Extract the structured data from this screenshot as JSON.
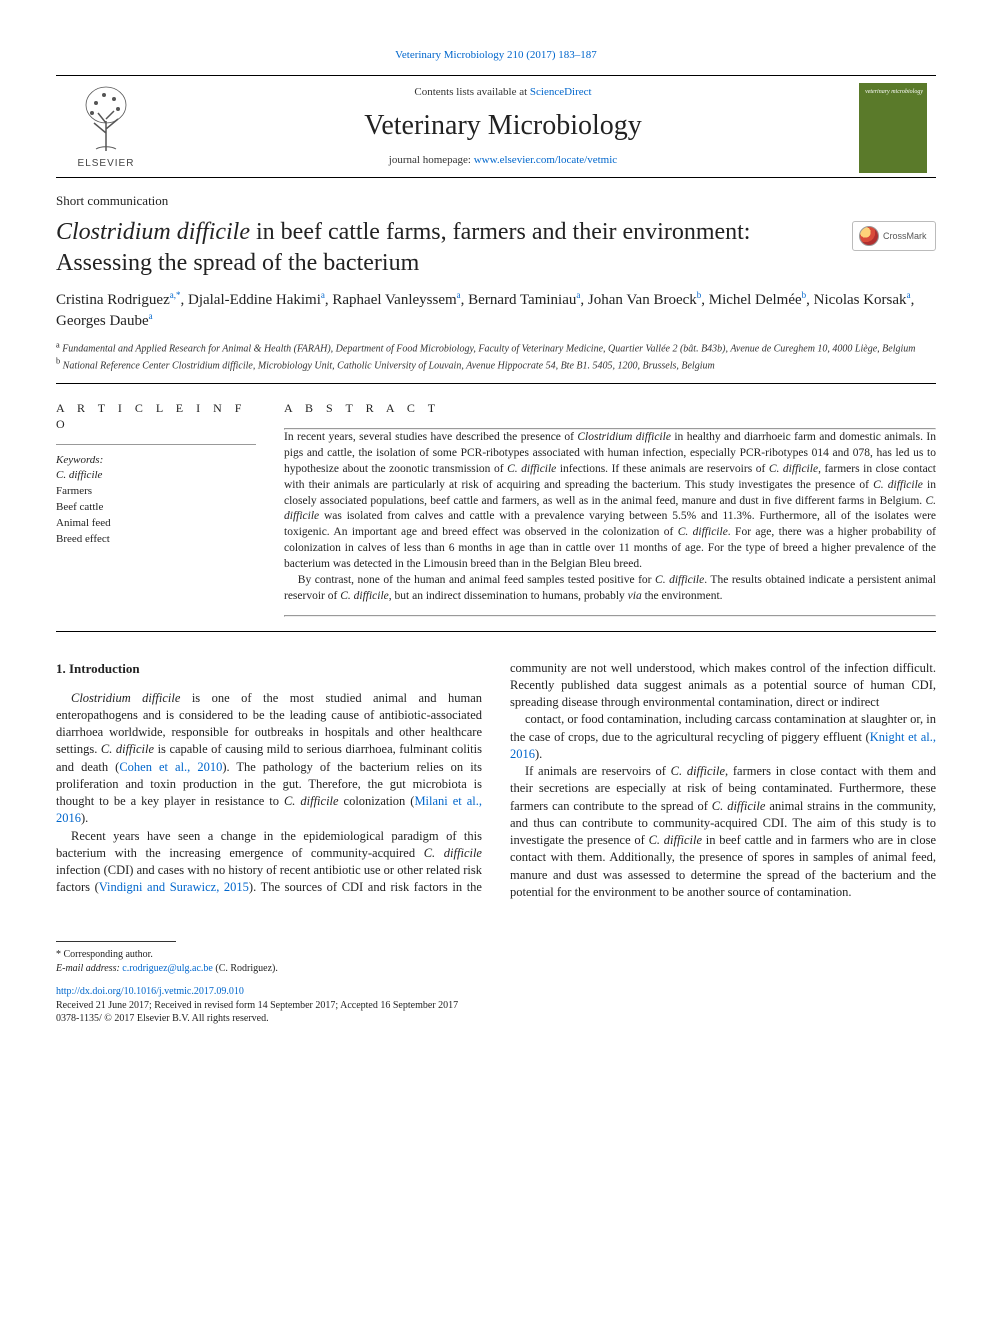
{
  "top_link": "Veterinary Microbiology 210 (2017) 183–187",
  "header": {
    "contents_prefix": "Contents lists available at ",
    "contents_link": "ScienceDirect",
    "journal_name": "Veterinary Microbiology",
    "homepage_prefix": "journal homepage: ",
    "homepage_link": "www.elsevier.com/locate/vetmic",
    "elsevier": "ELSEVIER",
    "cover_text": "veterinary microbiology",
    "crossmark": "CrossMark"
  },
  "section_label": "Short communication",
  "title_prefix_italic": "Clostridium difficile",
  "title_rest": " in beef cattle farms, farmers and their environment: Assessing the spread of the bacterium",
  "authors_line": "Cristina Rodriguez|a,*|, Djalal-Eddine Hakimi|a|, Raphael Vanleyssem|a|, Bernard Taminiau|a|, Johan Van Broeck|b|, Michel Delmée|b|, Nicolas Korsak|a|, Georges Daube|a|",
  "affils": [
    {
      "sup": "a",
      "text": " Fundamental and Applied Research for Animal & Health (FARAH), Department of Food Microbiology, Faculty of Veterinary Medicine, Quartier Vallée 2 (bât. B43b), Avenue de Cureghem 10, 4000 Liège, Belgium"
    },
    {
      "sup": "b",
      "text": " National Reference Center Clostridium difficile, Microbiology Unit, Catholic University of Louvain, Avenue Hippocrate 54, Bte B1. 5405, 1200, Brussels, Belgium"
    }
  ],
  "info": {
    "heading": "A R T I C L E  I N F O",
    "kw_label": "Keywords:",
    "keywords": [
      "C. difficile",
      "Farmers",
      "Beef cattle",
      "Animal feed",
      "Breed effect"
    ]
  },
  "abstract": {
    "heading": "A B S T R A C T",
    "p1": "In recent years, several studies have described the presence of Clostridium difficile in healthy and diarrhoeic farm and domestic animals. In pigs and cattle, the isolation of some PCR-ribotypes associated with human infection, especially PCR-ribotypes 014 and 078, has led us to hypothesize about the zoonotic transmission of C. difficile infections. If these animals are reservoirs of C. difficile, farmers in close contact with their animals are particularly at risk of acquiring and spreading the bacterium. This study investigates the presence of C. difficile in closely associated populations, beef cattle and farmers, as well as in the animal feed, manure and dust in five different farms in Belgium. C. difficile was isolated from calves and cattle with a prevalence varying between 5.5% and 11.3%. Furthermore, all of the isolates were toxigenic. An important age and breed effect was observed in the colonization of C. difficile. For age, there was a higher probability of colonization in calves of less than 6 months in age than in cattle over 11 months of age. For the type of breed a higher prevalence of the bacterium was detected in the Limousin breed than in the Belgian Bleu breed.",
    "p2": "By contrast, none of the human and animal feed samples tested positive for C. difficile. The results obtained indicate a persistent animal reservoir of C. difficile, but an indirect dissemination to humans, probably via the environment."
  },
  "intro": {
    "heading": "1. Introduction",
    "p1": "Clostridium difficile is one of the most studied animal and human enteropathogens and is considered to be the leading cause of antibiotic-associated diarrhoea worldwide, responsible for outbreaks in hospitals and other healthcare settings. C. difficile is capable of causing mild to serious diarrhoea, fulminant colitis and death (Cohen et al., 2010). The pathology of the bacterium relies on its proliferation and toxin production in the gut. Therefore, the gut microbiota is thought to be a key player in resistance to C. difficile colonization (Milani et al., 2016).",
    "p2": "Recent years have seen a change in the epidemiological paradigm of this bacterium with the increasing emergence of community-acquired C. difficile infection (CDI) and cases with no history of recent antibiotic use or other related risk factors (Vindigni and Surawicz, 2015). The sources of CDI and risk factors in the community are not well understood, which makes control of the infection difficult. Recently published data suggest animals as a potential source of human CDI, spreading disease through environmental contamination, direct or indirect",
    "p3": "contact, or food contamination, including carcass contamination at slaughter or, in the case of crops, due to the agricultural recycling of piggery effluent (Knight et al., 2016).",
    "p4": "If animals are reservoirs of C. difficile, farmers in close contact with them and their secretions are especially at risk of being contaminated. Furthermore, these farmers can contribute to the spread of C. difficile animal strains in the community, and thus can contribute to community-acquired CDI. The aim of this study is to investigate the presence of C. difficile in beef cattle and in farmers who are in close contact with them. Additionally, the presence of spores in samples of animal feed, manure and dust was assessed to determine the spread of the bacterium and the potential for the environment to be another source of contamination."
  },
  "footnote": {
    "corr": "* Corresponding author.",
    "email_label": "E-mail address: ",
    "email": "c.rodriguez@ulg.ac.be",
    "email_tail": " (C. Rodriguez)."
  },
  "doi": {
    "link": "http://dx.doi.org/10.1016/j.vetmic.2017.09.010",
    "received": "Received 21 June 2017; Received in revised form 14 September 2017; Accepted 16 September 2017",
    "issn": "0378-1135/ © 2017 Elsevier B.V. All rights reserved."
  },
  "colors": {
    "link": "#0066cc",
    "text": "#222222",
    "cover_bg": "#5a7a2a"
  }
}
